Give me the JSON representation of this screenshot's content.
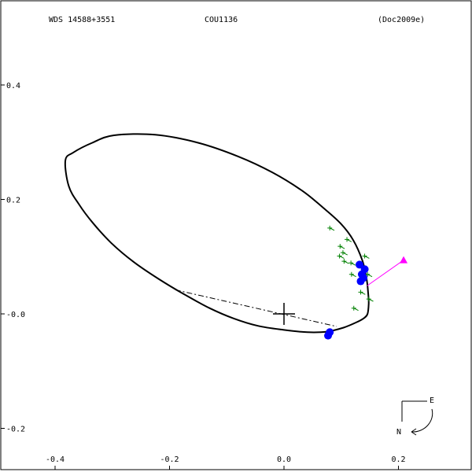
{
  "header": {
    "wds_id": "WDS 14588+3551",
    "discoverer": "COU1136",
    "reference": "(Doc2009e)"
  },
  "compass": {
    "east": "E",
    "north": "N"
  },
  "colors": {
    "orbit": "#000000",
    "observations": "#0000ff",
    "micrometry": "#008000",
    "periastron_marker": "#ff00ff",
    "frame": "#000000"
  },
  "chart_data": {
    "type": "scatter",
    "title": "",
    "xlabel": "",
    "ylabel": "",
    "xlim": [
      -0.41,
      0.32
    ],
    "ylim": [
      -0.24,
      0.52
    ],
    "x_ticks": [
      {
        "value": -0.4,
        "label": "-0.4"
      },
      {
        "value": -0.2,
        "label": "-0.2"
      },
      {
        "value": 0.0,
        "label": "0.0"
      },
      {
        "value": 0.2,
        "label": "0.2"
      }
    ],
    "y_ticks": [
      {
        "value": 0.4,
        "label": "0.4"
      },
      {
        "value": 0.2,
        "label": "0.2"
      },
      {
        "value": 0.0,
        "label": "-0.0"
      },
      {
        "value": -0.2,
        "label": "-0.2"
      }
    ],
    "grid": false,
    "legend": "none",
    "primary_star": {
      "x": 0.0,
      "y": 0.0
    },
    "orbit": [
      [
        -0.297,
        0.312
      ],
      [
        -0.335,
        0.299
      ],
      [
        -0.368,
        0.282
      ],
      [
        -0.382,
        0.268
      ],
      [
        -0.376,
        0.223
      ],
      [
        -0.358,
        0.191
      ],
      [
        -0.334,
        0.159
      ],
      [
        -0.302,
        0.124
      ],
      [
        -0.263,
        0.091
      ],
      [
        -0.219,
        0.061
      ],
      [
        -0.174,
        0.034
      ],
      [
        -0.13,
        0.01
      ],
      [
        -0.088,
        -0.008
      ],
      [
        -0.045,
        -0.021
      ],
      [
        0.0,
        -0.028
      ],
      [
        0.041,
        -0.032
      ],
      [
        0.075,
        -0.031
      ],
      [
        0.104,
        -0.024
      ],
      [
        0.126,
        -0.015
      ],
      [
        0.139,
        -0.008
      ],
      [
        0.146,
        0.0
      ],
      [
        0.148,
        0.018
      ],
      [
        0.147,
        0.038
      ],
      [
        0.144,
        0.063
      ],
      [
        0.137,
        0.093
      ],
      [
        0.121,
        0.129
      ],
      [
        0.099,
        0.158
      ],
      [
        0.069,
        0.185
      ],
      [
        0.032,
        0.215
      ],
      [
        -0.02,
        0.247
      ],
      [
        -0.08,
        0.275
      ],
      [
        -0.15,
        0.299
      ],
      [
        -0.225,
        0.313
      ],
      [
        -0.297,
        0.312
      ]
    ],
    "line_of_nodes": [
      [
        -0.19,
        0.042
      ],
      [
        0.092,
        -0.022
      ]
    ],
    "observations": [
      {
        "x": 0.132,
        "y": 0.086
      },
      {
        "x": 0.141,
        "y": 0.078
      },
      {
        "x": 0.136,
        "y": 0.069
      },
      {
        "x": 0.139,
        "y": 0.063
      },
      {
        "x": 0.134,
        "y": 0.057
      },
      {
        "x": 0.08,
        "y": -0.032
      },
      {
        "x": 0.077,
        "y": -0.038
      }
    ],
    "micrometry": [
      {
        "x": 0.08,
        "y": 0.15
      },
      {
        "x": 0.11,
        "y": 0.13
      },
      {
        "x": 0.098,
        "y": 0.118
      },
      {
        "x": 0.103,
        "y": 0.107
      },
      {
        "x": 0.097,
        "y": 0.101
      },
      {
        "x": 0.105,
        "y": 0.092
      },
      {
        "x": 0.117,
        "y": 0.089
      },
      {
        "x": 0.118,
        "y": 0.069
      },
      {
        "x": 0.141,
        "y": 0.101
      },
      {
        "x": 0.146,
        "y": 0.069
      },
      {
        "x": 0.134,
        "y": 0.038
      },
      {
        "x": 0.148,
        "y": 0.026
      },
      {
        "x": 0.122,
        "y": 0.01
      }
    ],
    "periastron_line": [
      [
        0.145,
        0.049
      ],
      [
        0.209,
        0.094
      ]
    ]
  }
}
